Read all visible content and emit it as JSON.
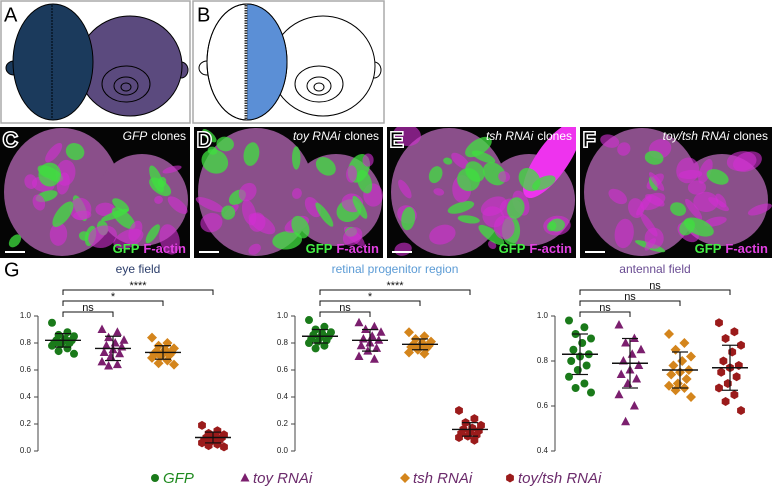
{
  "panel_labels": [
    "A",
    "B",
    "C",
    "D",
    "E",
    "F",
    "G"
  ],
  "images": [
    {
      "gene": "GFP",
      "suffix": "clones",
      "stain1": "GFP",
      "stain2": "F-actin"
    },
    {
      "gene": "toy RNAi",
      "suffix": "clones",
      "stain1": "GFP",
      "stain2": "F-actin"
    },
    {
      "gene": "tsh RNAi",
      "suffix": "clones",
      "stain1": "GFP",
      "stain2": "F-actin"
    },
    {
      "gene": "toy/tsh RNAi",
      "suffix": "clones",
      "stain1": "GFP",
      "stain2": "F-actin"
    }
  ],
  "legend": [
    {
      "name": "GFP",
      "color": "#1a7a1a",
      "marker": "circle"
    },
    {
      "name": "toy RNAi",
      "color": "#7b1f6e",
      "marker": "triangle"
    },
    {
      "name": "tsh RNAi",
      "color": "#d4851c",
      "marker": "diamond"
    },
    {
      "name": "toy/tsh RNAi",
      "color": "#9b1b1b",
      "marker": "hexagon"
    }
  ],
  "chart_data": [
    {
      "type": "strip",
      "title": "eye field",
      "title_color": "#2c3e6b",
      "ylim": [
        0,
        1.0
      ],
      "yticks": [
        {
          "value": 0,
          "label": "0.0"
        },
        0.2,
        0.4,
        0.6,
        0.8,
        {
          "value": 1.0,
          "label": "1.0"
        }
      ],
      "series": [
        {
          "values": [
            0.95,
            0.88,
            0.86,
            0.85,
            0.83,
            0.82,
            0.82,
            0.81,
            0.8,
            0.8,
            0.79,
            0.78,
            0.76,
            0.74,
            0.72
          ],
          "mean": 0.82,
          "sd": 0.05
        },
        {
          "values": [
            0.9,
            0.88,
            0.84,
            0.82,
            0.8,
            0.78,
            0.77,
            0.75,
            0.73,
            0.72,
            0.7,
            0.66,
            0.64,
            0.63
          ],
          "mean": 0.76,
          "sd": 0.09
        },
        {
          "values": [
            0.84,
            0.8,
            0.78,
            0.76,
            0.75,
            0.74,
            0.73,
            0.72,
            0.72,
            0.71,
            0.7,
            0.69,
            0.67,
            0.65,
            0.64
          ],
          "mean": 0.73,
          "sd": 0.05
        },
        {
          "values": [
            0.19,
            0.15,
            0.13,
            0.12,
            0.11,
            0.1,
            0.1,
            0.09,
            0.08,
            0.08,
            0.07,
            0.06,
            0.05,
            0.04,
            0.03
          ],
          "mean": 0.1,
          "sd": 0.04
        }
      ],
      "comparisons": [
        {
          "groups": [
            0,
            1
          ],
          "label": "ns"
        },
        {
          "groups": [
            0,
            2
          ],
          "label": "*"
        },
        {
          "groups": [
            0,
            3
          ],
          "label": "****"
        }
      ]
    },
    {
      "type": "strip",
      "title": "retinal progenitor region",
      "title_color": "#5b9bd5",
      "ylim": [
        0,
        1.0
      ],
      "yticks": [
        {
          "value": 0,
          "label": "0.0"
        },
        0.2,
        0.4,
        0.6,
        0.8,
        {
          "value": 1.0,
          "label": "1.0"
        }
      ],
      "series": [
        {
          "values": [
            0.97,
            0.92,
            0.9,
            0.88,
            0.87,
            0.86,
            0.85,
            0.84,
            0.83,
            0.82,
            0.81,
            0.8,
            0.78,
            0.76
          ],
          "mean": 0.85,
          "sd": 0.05
        },
        {
          "values": [
            0.95,
            0.92,
            0.9,
            0.88,
            0.85,
            0.83,
            0.82,
            0.8,
            0.78,
            0.76,
            0.74,
            0.7,
            0.68
          ],
          "mean": 0.82,
          "sd": 0.08
        },
        {
          "values": [
            0.88,
            0.85,
            0.83,
            0.81,
            0.8,
            0.79,
            0.78,
            0.78,
            0.77,
            0.76,
            0.75,
            0.73,
            0.72
          ],
          "mean": 0.79,
          "sd": 0.04
        },
        {
          "values": [
            0.3,
            0.24,
            0.21,
            0.19,
            0.17,
            0.16,
            0.15,
            0.14,
            0.13,
            0.12,
            0.11,
            0.1,
            0.08
          ],
          "mean": 0.16,
          "sd": 0.05
        }
      ],
      "comparisons": [
        {
          "groups": [
            0,
            1
          ],
          "label": "ns"
        },
        {
          "groups": [
            0,
            2
          ],
          "label": "*"
        },
        {
          "groups": [
            0,
            3
          ],
          "label": "****"
        }
      ]
    },
    {
      "type": "strip",
      "title": "antennal field",
      "title_color": "#6a4c93",
      "ylim": [
        0.4,
        1.0
      ],
      "yticks": [
        0.4,
        0.6,
        0.8,
        {
          "value": 1.0,
          "label": "1.0"
        }
      ],
      "series": [
        {
          "values": [
            0.98,
            0.95,
            0.92,
            0.9,
            0.88,
            0.85,
            0.83,
            0.82,
            0.8,
            0.78,
            0.76,
            0.73,
            0.7,
            0.68,
            0.66
          ],
          "mean": 0.83,
          "sd": 0.09
        },
        {
          "values": [
            0.96,
            0.9,
            0.88,
            0.85,
            0.83,
            0.8,
            0.78,
            0.76,
            0.74,
            0.72,
            0.7,
            0.65,
            0.6,
            0.53
          ],
          "mean": 0.79,
          "sd": 0.11
        },
        {
          "values": [
            0.92,
            0.88,
            0.85,
            0.82,
            0.8,
            0.78,
            0.76,
            0.75,
            0.74,
            0.72,
            0.7,
            0.69,
            0.68,
            0.67,
            0.64
          ],
          "mean": 0.76,
          "sd": 0.08
        },
        {
          "values": [
            0.97,
            0.93,
            0.9,
            0.87,
            0.84,
            0.8,
            0.78,
            0.77,
            0.75,
            0.73,
            0.7,
            0.68,
            0.65,
            0.62,
            0.58
          ],
          "mean": 0.77,
          "sd": 0.1
        }
      ],
      "comparisons": [
        {
          "groups": [
            0,
            1
          ],
          "label": "ns"
        },
        {
          "groups": [
            0,
            2
          ],
          "label": "ns"
        },
        {
          "groups": [
            0,
            3
          ],
          "label": "ns"
        }
      ]
    }
  ]
}
